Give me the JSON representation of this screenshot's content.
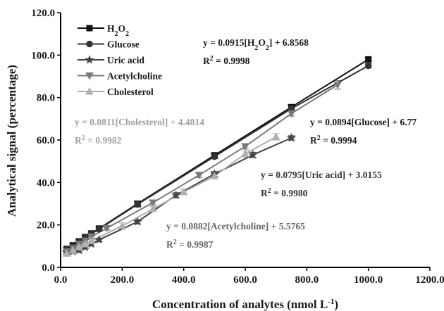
{
  "chart_data": {
    "type": "line",
    "xlabel": "Concentration of analytes (nmol L",
    "xlabel_unit_sup": "-1",
    "xlabel_close": ")",
    "ylabel": "Analytical signal (percentage)",
    "xlim": [
      0,
      1200
    ],
    "ylim": [
      0,
      120
    ],
    "x_ticks": [
      "0.0",
      "200.0",
      "400.0",
      "600.0",
      "800.0",
      "1000.0",
      "1200.0"
    ],
    "y_ticks": [
      "0.0",
      "20.0",
      "40.0",
      "60.0",
      "80.0",
      "100.0",
      "120.0"
    ],
    "grid": false,
    "legend_position": "top-left",
    "series": [
      {
        "name": "H2O2",
        "name_parts": [
          {
            "t": "H"
          },
          {
            "t": "2",
            "sub": true
          },
          {
            "t": "O"
          },
          {
            "t": "2",
            "sub": true
          }
        ],
        "color": "#111111",
        "marker": "square",
        "x": [
          20,
          40,
          60,
          80,
          100,
          125,
          250,
          500,
          750,
          1000
        ],
        "y": [
          8.7,
          10.4,
          12.3,
          14.3,
          16.0,
          18.3,
          30.0,
          52.8,
          75.5,
          98.0
        ],
        "err": [
          0.8,
          0.8,
          0.8,
          0.8,
          0.8,
          0.9,
          1.2,
          1.0,
          1.2,
          1.0
        ]
      },
      {
        "name": "Glucose",
        "color": "#333333",
        "marker": "circle",
        "x": [
          20,
          40,
          60,
          80,
          100,
          125,
          250,
          500,
          750,
          1000
        ],
        "y": [
          8.5,
          10.2,
          12.0,
          14.0,
          15.8,
          18.0,
          29.7,
          52.2,
          74.8,
          95.0
        ],
        "err": [
          0.8,
          0.8,
          0.8,
          0.8,
          0.8,
          0.9,
          1.2,
          1.0,
          1.2,
          1.0
        ]
      },
      {
        "name": "Uric acid",
        "color": "#444444",
        "marker": "star",
        "x": [
          20,
          40,
          60,
          80,
          100,
          125,
          250,
          375,
          500,
          625,
          750
        ],
        "y": [
          7.0,
          7.5,
          8.0,
          9.5,
          11.0,
          13.0,
          21.5,
          34.0,
          44.0,
          53.0,
          61.0
        ],
        "err": [
          0.7,
          0.7,
          0.7,
          0.7,
          0.8,
          0.8,
          1.0,
          1.2,
          1.2,
          1.2,
          1.0
        ]
      },
      {
        "name": "Acetylcholine",
        "color": "#7a7a7a",
        "marker": "triangle-down",
        "x": [
          20,
          40,
          60,
          80,
          100,
          150,
          300,
          450,
          600,
          750,
          900
        ],
        "y": [
          7.5,
          9.0,
          11.0,
          12.5,
          14.5,
          18.5,
          30.5,
          43.5,
          57.0,
          72.5,
          86.0
        ],
        "err": [
          0.7,
          0.7,
          0.7,
          0.7,
          0.8,
          0.9,
          1.0,
          1.2,
          1.2,
          1.2,
          2.0
        ]
      },
      {
        "name": "Cholesterol",
        "color": "#b0b0b0",
        "marker": "triangle-up",
        "x": [
          20,
          40,
          60,
          80,
          100,
          200,
          300,
          400,
          500,
          600,
          700
        ],
        "y": [
          6.5,
          8.0,
          9.5,
          11.0,
          12.5,
          19.5,
          27.5,
          35.5,
          43.0,
          53.5,
          61.5
        ],
        "err": [
          0.6,
          0.6,
          0.6,
          0.6,
          0.7,
          1.5,
          1.2,
          1.2,
          1.2,
          1.5,
          1.5
        ]
      }
    ],
    "annotations": [
      {
        "series": "H2O2",
        "color": "#1a1a1a",
        "equation": [
          {
            "t": "y = 0.0915[H"
          },
          {
            "t": "2",
            "sub": true
          },
          {
            "t": "O"
          },
          {
            "t": "2",
            "sub": true
          },
          {
            "t": "] + 6.8568"
          }
        ],
        "r2": [
          {
            "t": "R"
          },
          {
            "t": "2",
            "sup": true
          },
          {
            "t": " = 0.9998"
          }
        ]
      },
      {
        "series": "Glucose",
        "color": "#1a1a1a",
        "equation": [
          {
            "t": "y = 0.0894[Glucose] + 6.77"
          }
        ],
        "r2": [
          {
            "t": "R"
          },
          {
            "t": "2",
            "sup": true
          },
          {
            "t": " = 0.9994"
          }
        ]
      },
      {
        "series": "Uric acid",
        "color": "#333333",
        "equation": [
          {
            "t": "y = 0.0795[Uric acid] + 3.0155"
          }
        ],
        "r2": [
          {
            "t": "R"
          },
          {
            "t": "2",
            "sup": true
          },
          {
            "t": " = 0.9980"
          }
        ]
      },
      {
        "series": "Acetylcholine",
        "color": "#666666",
        "equation": [
          {
            "t": "y = 0.0882[Acetylcholine] + 5.5765"
          }
        ],
        "r2": [
          {
            "t": "R"
          },
          {
            "t": "2",
            "sup": true
          },
          {
            "t": " = 0.9987"
          }
        ]
      },
      {
        "series": "Cholesterol",
        "color": "#a0a0a0",
        "equation": [
          {
            "t": "y = 0.0811[Cholesterol] + 4.4814"
          }
        ],
        "r2": [
          {
            "t": "R"
          },
          {
            "t": "2",
            "sup": true
          },
          {
            "t": " = 0.9982"
          }
        ]
      }
    ]
  }
}
